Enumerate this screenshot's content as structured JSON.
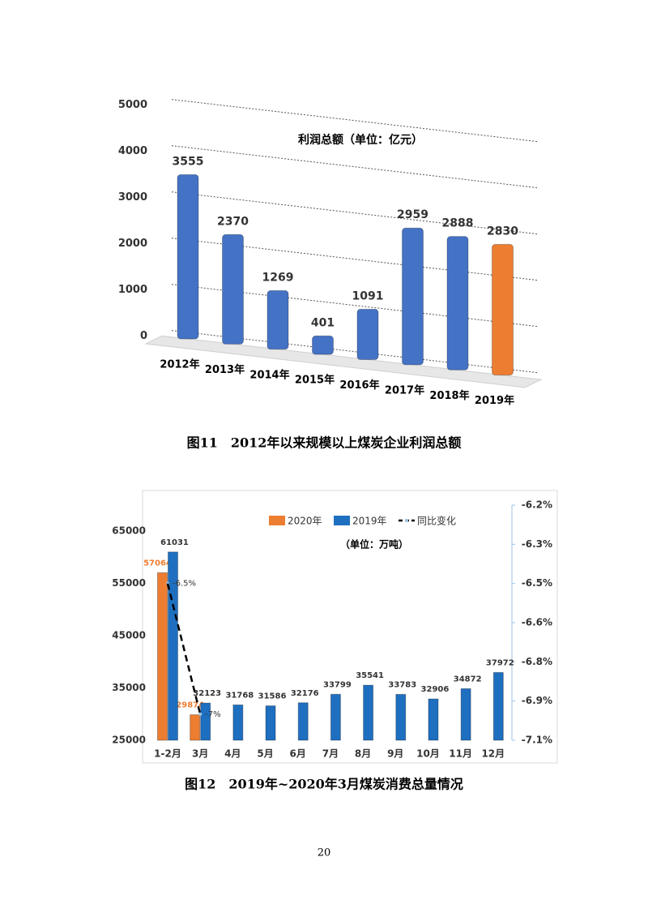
{
  "chart_data": [
    {
      "type": "bar",
      "title": "利润总额（单位：亿元）",
      "categories": [
        "2012年",
        "2013年",
        "2014年",
        "2015年",
        "2016年",
        "2017年",
        "2018年",
        "2019年"
      ],
      "values": [
        3555,
        2370,
        1269,
        401,
        1091,
        2959,
        2888,
        2830
      ],
      "colors": [
        "#4472c4",
        "#4472c4",
        "#4472c4",
        "#4472c4",
        "#4472c4",
        "#4472c4",
        "#4472c4",
        "#ed7d31"
      ],
      "ylim": [
        0,
        5000
      ],
      "yticks": [
        0,
        1000,
        2000,
        3000,
        4000,
        5000
      ],
      "grid": true
    },
    {
      "type": "bar_line",
      "subtitle": "（单位：万吨）",
      "categories": [
        "1-2月",
        "3月",
        "4月",
        "5月",
        "6月",
        "7月",
        "8月",
        "9月",
        "10月",
        "11月",
        "12月"
      ],
      "series": [
        {
          "name": "2020年",
          "color": "#ed7d31",
          "values": [
            57064,
            29874,
            null,
            null,
            null,
            null,
            null,
            null,
            null,
            null,
            null
          ]
        },
        {
          "name": "2019年",
          "color": "#1f6fc0",
          "values": [
            61031,
            32123,
            31768,
            31586,
            32176,
            33799,
            35541,
            33783,
            32906,
            34872,
            37972
          ]
        },
        {
          "name": "同比变化",
          "color": "#000000",
          "type": "line",
          "axis": "y2",
          "values": [
            -6.5,
            -7,
            null,
            null,
            null,
            null,
            null,
            null,
            null,
            null,
            null
          ],
          "value_labels": [
            "-6.5%",
            "-7%",
            null,
            null,
            null,
            null,
            null,
            null,
            null,
            null,
            null
          ]
        }
      ],
      "ylim": [
        25000,
        70000
      ],
      "yticks": [
        25000,
        35000,
        45000,
        55000,
        65000
      ],
      "y2lim": [
        -7.1,
        -6.2
      ],
      "y2ticks": [
        {
          "value": -7.1,
          "label": "-7.1%"
        },
        {
          "value": -6.95,
          "label": "-6.9%"
        },
        {
          "value": -6.8,
          "label": "-6.8%"
        },
        {
          "value": -6.65,
          "label": "-6.6%"
        },
        {
          "value": -6.5,
          "label": "-6.5%"
        },
        {
          "value": -6.35,
          "label": "-6.3%"
        },
        {
          "value": -6.2,
          "label": "-6.2%"
        }
      ],
      "legend": "top"
    }
  ],
  "captions": [
    "图11　2012年以来规模以上煤炭企业利润总额",
    "图12　2019年~2020年3月煤炭消费总量情况"
  ],
  "page_number": 20
}
